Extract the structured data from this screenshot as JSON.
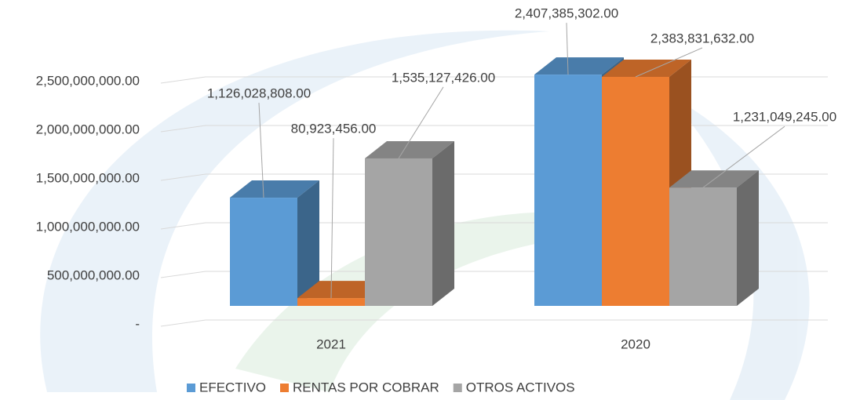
{
  "chart_data": {
    "type": "bar3d",
    "categories": [
      "2021",
      "2020"
    ],
    "series": [
      {
        "name": "EFECTIVO",
        "color": "#5b9bd5",
        "values": [
          1126028808,
          2407385302
        ],
        "value_labels": [
          "1,126,028,808.00",
          "2,407,385,302.00"
        ]
      },
      {
        "name": "RENTAS POR COBRAR",
        "color": "#ed7d31",
        "values": [
          80923456,
          2383831632
        ],
        "value_labels": [
          "80,923,456.00",
          "2,383,831,632.00"
        ]
      },
      {
        "name": "OTROS ACTIVOS",
        "color": "#a5a5a5",
        "values": [
          1535127426,
          1231049245
        ],
        "value_labels": [
          "1,535,127,426.00",
          "1,231,049,245.00"
        ]
      }
    ],
    "ylim": [
      0,
      3000000000
    ],
    "yticks": [
      {
        "value": 0,
        "label": "-"
      },
      {
        "value": 500000000,
        "label": "500,000,000.00"
      },
      {
        "value": 1000000000,
        "label": "1,000,000,000.00"
      },
      {
        "value": 1500000000,
        "label": "1,500,000,000.00"
      },
      {
        "value": 2000000000,
        "label": "2,000,000,000.00"
      },
      {
        "value": 2500000000,
        "label": "2,500,000,000.00"
      }
    ],
    "grid": true,
    "legend": "bottom"
  }
}
